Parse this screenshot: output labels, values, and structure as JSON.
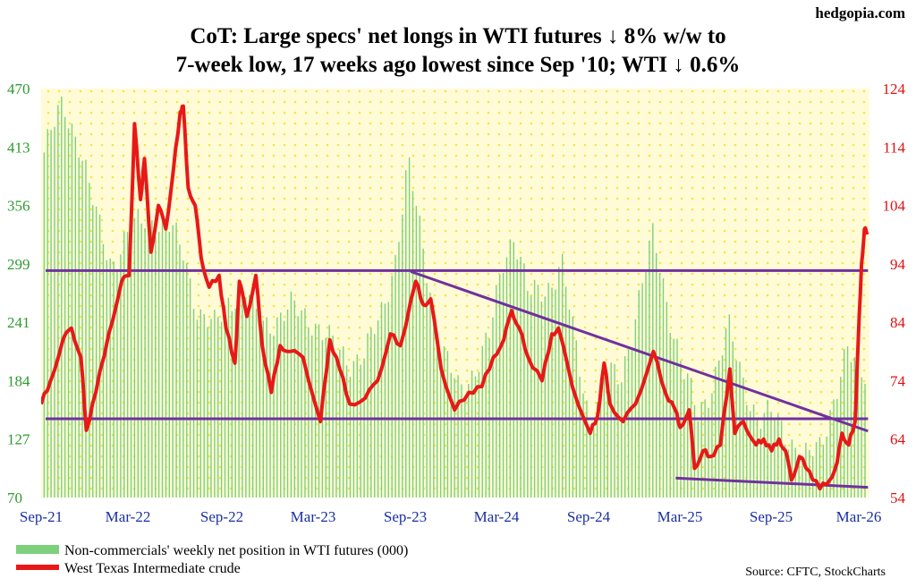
{
  "watermark": "hedgopia.com",
  "title_line1": "CoT: Large specs' net longs in WTI futures ↓ 8% w/w to",
  "title_line2": "7-week low, 17 weeks ago lowest since Sep '10; WTI ↓ 0.6%",
  "source": "Source: CFTC, StockCharts",
  "colors": {
    "bars": "#7ed07e",
    "wti_line": "#e81818",
    "trend_lines": "#7030a0",
    "plot_bg": "#fffbd6",
    "dots": "#f2e64a",
    "left_axis": "#2e9a2e",
    "right_axis": "#e01010",
    "x_axis": "#1a2fa0"
  },
  "chart_data": {
    "type": "bar+line",
    "title": "CoT: Large specs' net longs in WTI futures ↓ 8% w/w to 7-week low, 17 weeks ago lowest since Sep '10; WTI ↓ 0.6%",
    "x_ticks": [
      "Sep-21",
      "Mar-22",
      "Sep-22",
      "Mar-23",
      "Sep-23",
      "Mar-24",
      "Sep-24",
      "Mar-25",
      "Sep-25",
      "Mar-26"
    ],
    "y_left": {
      "ticks": [
        "470",
        "413",
        "356",
        "299",
        "241",
        "184",
        "127",
        "70"
      ],
      "range": [
        70,
        470
      ]
    },
    "y_right": {
      "ticks": [
        "124",
        "114",
        "104",
        "94",
        "84",
        "74",
        "64",
        "54"
      ],
      "range": [
        54,
        124
      ]
    },
    "legend": [
      {
        "label": "Non-commercials' weekly net position in WTI futures (000)",
        "kind": "bar"
      },
      {
        "label": "West Texas Intermediate crude",
        "kind": "line"
      }
    ],
    "series": [
      {
        "name": "Non-commercials' weekly net position in WTI futures (000)",
        "kind": "bar",
        "axis": "left",
        "freq": "weekly",
        "anchors": [
          [
            "2021-09-01",
            400
          ],
          [
            "2021-10-15",
            455
          ],
          [
            "2021-11-15",
            420
          ],
          [
            "2021-12-20",
            345
          ],
          [
            "2022-01-20",
            300
          ],
          [
            "2022-03-01",
            330
          ],
          [
            "2022-04-01",
            345
          ],
          [
            "2022-05-15",
            335
          ],
          [
            "2022-06-15",
            310
          ],
          [
            "2022-07-15",
            250
          ],
          [
            "2022-08-15",
            235
          ],
          [
            "2022-09-15",
            265
          ],
          [
            "2022-10-15",
            275
          ],
          [
            "2022-11-15",
            240
          ],
          [
            "2022-12-20",
            245
          ],
          [
            "2023-01-20",
            255
          ],
          [
            "2023-03-01",
            245
          ],
          [
            "2023-04-15",
            215
          ],
          [
            "2023-05-15",
            205
          ],
          [
            "2023-06-15",
            210
          ],
          [
            "2023-07-15",
            245
          ],
          [
            "2023-08-15",
            305
          ],
          [
            "2023-09-10",
            395
          ],
          [
            "2023-10-10",
            315
          ],
          [
            "2023-11-15",
            215
          ],
          [
            "2023-12-20",
            175
          ],
          [
            "2024-01-20",
            195
          ],
          [
            "2024-02-20",
            225
          ],
          [
            "2024-03-20",
            305
          ],
          [
            "2024-04-10",
            330
          ],
          [
            "2024-05-10",
            265
          ],
          [
            "2024-06-15",
            275
          ],
          [
            "2024-07-15",
            300
          ],
          [
            "2024-08-10",
            220
          ],
          [
            "2024-09-10",
            145
          ],
          [
            "2024-10-10",
            190
          ],
          [
            "2024-11-10",
            185
          ],
          [
            "2024-12-10",
            250
          ],
          [
            "2025-01-15",
            325
          ],
          [
            "2025-02-15",
            255
          ],
          [
            "2025-03-15",
            195
          ],
          [
            "2025-04-15",
            150
          ],
          [
            "2025-05-15",
            185
          ],
          [
            "2025-06-15",
            235
          ],
          [
            "2025-07-15",
            185
          ],
          [
            "2025-08-15",
            145
          ],
          [
            "2025-09-15",
            150
          ],
          [
            "2025-10-15",
            130
          ],
          [
            "2025-11-15",
            105
          ],
          [
            "2025-12-15",
            120
          ],
          [
            "2026-01-15",
            170
          ],
          [
            "2026-02-10",
            210
          ],
          [
            "2026-03-01",
            196
          ]
        ]
      },
      {
        "name": "West Texas Intermediate crude",
        "kind": "line",
        "axis": "right",
        "points": [
          [
            "2021-09-01",
            70
          ],
          [
            "2021-09-20",
            74
          ],
          [
            "2021-10-15",
            81
          ],
          [
            "2021-11-01",
            83
          ],
          [
            "2021-11-20",
            78
          ],
          [
            "2021-12-01",
            65.5
          ],
          [
            "2021-12-20",
            72
          ],
          [
            "2022-01-15",
            82
          ],
          [
            "2022-02-10",
            91
          ],
          [
            "2022-02-25",
            92
          ],
          [
            "2022-03-08",
            118
          ],
          [
            "2022-03-20",
            105
          ],
          [
            "2022-03-28",
            112
          ],
          [
            "2022-04-10",
            96
          ],
          [
            "2022-04-25",
            104
          ],
          [
            "2022-05-10",
            100
          ],
          [
            "2022-05-25",
            110
          ],
          [
            "2022-06-08",
            120
          ],
          [
            "2022-06-14",
            121
          ],
          [
            "2022-06-24",
            107
          ],
          [
            "2022-07-08",
            104
          ],
          [
            "2022-07-20",
            95
          ],
          [
            "2022-08-05",
            90
          ],
          [
            "2022-08-25",
            92
          ],
          [
            "2022-09-08",
            83
          ],
          [
            "2022-09-26",
            77
          ],
          [
            "2022-10-05",
            91
          ],
          [
            "2022-10-20",
            85
          ],
          [
            "2022-11-07",
            92
          ],
          [
            "2022-11-20",
            80
          ],
          [
            "2022-12-08",
            72
          ],
          [
            "2022-12-26",
            80
          ],
          [
            "2023-01-15",
            79
          ],
          [
            "2023-02-10",
            78
          ],
          [
            "2023-03-17",
            67
          ],
          [
            "2023-04-05",
            81
          ],
          [
            "2023-04-25",
            76
          ],
          [
            "2023-05-15",
            70
          ],
          [
            "2023-06-15",
            71
          ],
          [
            "2023-07-10",
            74
          ],
          [
            "2023-08-05",
            82
          ],
          [
            "2023-08-25",
            80
          ],
          [
            "2023-09-25",
            91
          ],
          [
            "2023-10-10",
            87
          ],
          [
            "2023-10-25",
            88
          ],
          [
            "2023-11-15",
            76
          ],
          [
            "2023-12-12",
            69
          ],
          [
            "2024-01-10",
            72
          ],
          [
            "2024-02-05",
            73
          ],
          [
            "2024-02-28",
            78
          ],
          [
            "2024-03-20",
            81
          ],
          [
            "2024-04-05",
            86
          ],
          [
            "2024-04-20",
            83
          ],
          [
            "2024-05-08",
            78
          ],
          [
            "2024-06-05",
            74
          ],
          [
            "2024-06-25",
            82
          ],
          [
            "2024-07-08",
            83
          ],
          [
            "2024-08-05",
            73
          ],
          [
            "2024-09-10",
            65
          ],
          [
            "2024-09-25",
            68
          ],
          [
            "2024-10-08",
            77
          ],
          [
            "2024-10-20",
            70
          ],
          [
            "2024-11-15",
            67
          ],
          [
            "2024-12-10",
            70
          ],
          [
            "2025-01-15",
            79
          ],
          [
            "2025-02-08",
            72
          ],
          [
            "2025-02-28",
            69
          ],
          [
            "2025-03-10",
            66
          ],
          [
            "2025-03-28",
            69
          ],
          [
            "2025-04-08",
            59
          ],
          [
            "2025-04-25",
            62
          ],
          [
            "2025-05-10",
            61
          ],
          [
            "2025-05-30",
            63
          ],
          [
            "2025-06-18",
            76
          ],
          [
            "2025-06-28",
            65
          ],
          [
            "2025-07-15",
            67
          ],
          [
            "2025-08-10",
            63
          ],
          [
            "2025-08-25",
            64
          ],
          [
            "2025-09-10",
            62
          ],
          [
            "2025-09-25",
            64
          ],
          [
            "2025-10-08",
            62
          ],
          [
            "2025-10-20",
            57
          ],
          [
            "2025-11-05",
            61
          ],
          [
            "2025-11-25",
            58.5
          ],
          [
            "2025-12-16",
            55.5
          ],
          [
            "2026-01-05",
            57
          ],
          [
            "2026-01-20",
            60
          ],
          [
            "2026-01-30",
            65
          ],
          [
            "2026-02-12",
            63
          ],
          [
            "2026-02-25",
            67
          ],
          [
            "2026-03-03",
            80
          ],
          [
            "2026-03-10",
            94
          ],
          [
            "2026-03-16",
            100
          ],
          [
            "2026-03-21",
            99
          ]
        ]
      }
    ],
    "trend_lines": [
      {
        "axis": "left",
        "from": [
          "2021-09-10",
          292
        ],
        "to": [
          "2026-03-23",
          292
        ]
      },
      {
        "axis": "left",
        "from": [
          "2021-09-10",
          147
        ],
        "to": [
          "2026-03-23",
          147
        ]
      },
      {
        "axis": "left",
        "from": [
          "2023-09-15",
          291
        ],
        "to": [
          "2026-03-23",
          135
        ]
      },
      {
        "axis": "left",
        "from": [
          "2025-03-01",
          89
        ],
        "to": [
          "2026-03-23",
          80
        ]
      }
    ],
    "grid": "dotted",
    "legend_position": "bottom-left"
  }
}
